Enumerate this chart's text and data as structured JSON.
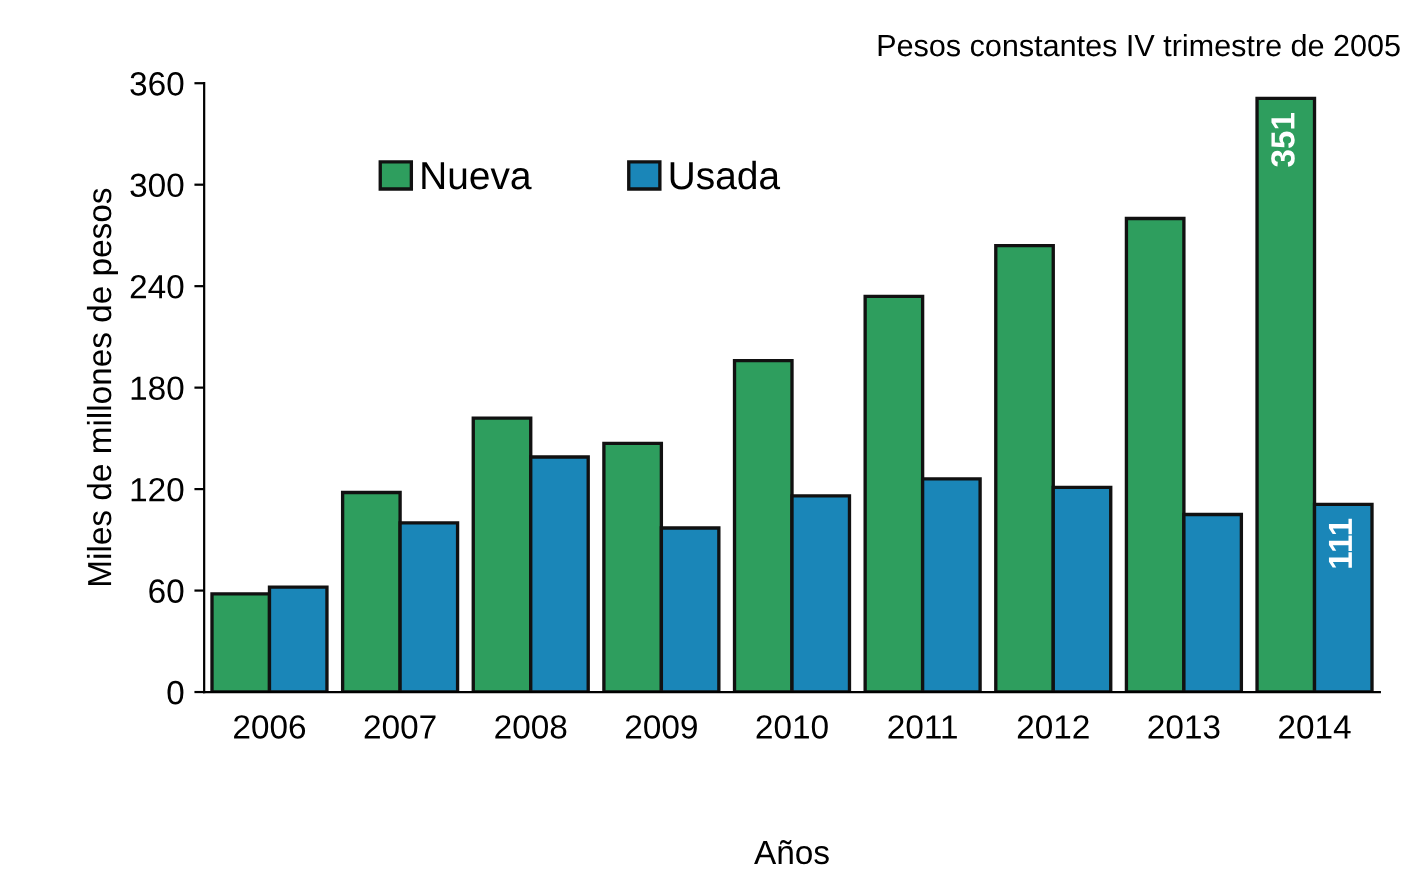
{
  "chart_data": {
    "type": "bar",
    "xlabel": "Años",
    "ylabel": "Miles de millones de pesos",
    "annotations": [
      "Pesos constantes IV trimestre de 2005"
    ],
    "categories": [
      "2006",
      "2007",
      "2008",
      "2009",
      "2010",
      "2011",
      "2012",
      "2013",
      "2014"
    ],
    "series": [
      {
        "name": "Nueva",
        "color": "#2e9e5e",
        "values": [
          58,
          118,
          162,
          147,
          196,
          234,
          264,
          280,
          351
        ],
        "value_labels": [
          null,
          null,
          null,
          null,
          null,
          null,
          null,
          null,
          "351"
        ]
      },
      {
        "name": "Usada",
        "color": "#1a86b8",
        "values": [
          62,
          100,
          139,
          97,
          116,
          126,
          121,
          105,
          111
        ],
        "value_labels": [
          null,
          null,
          null,
          null,
          null,
          null,
          null,
          null,
          "111"
        ]
      }
    ],
    "ylim": [
      0,
      360
    ],
    "yticks": [
      0,
      60,
      120,
      180,
      240,
      300,
      360
    ],
    "grid": false,
    "legend": "top left"
  }
}
